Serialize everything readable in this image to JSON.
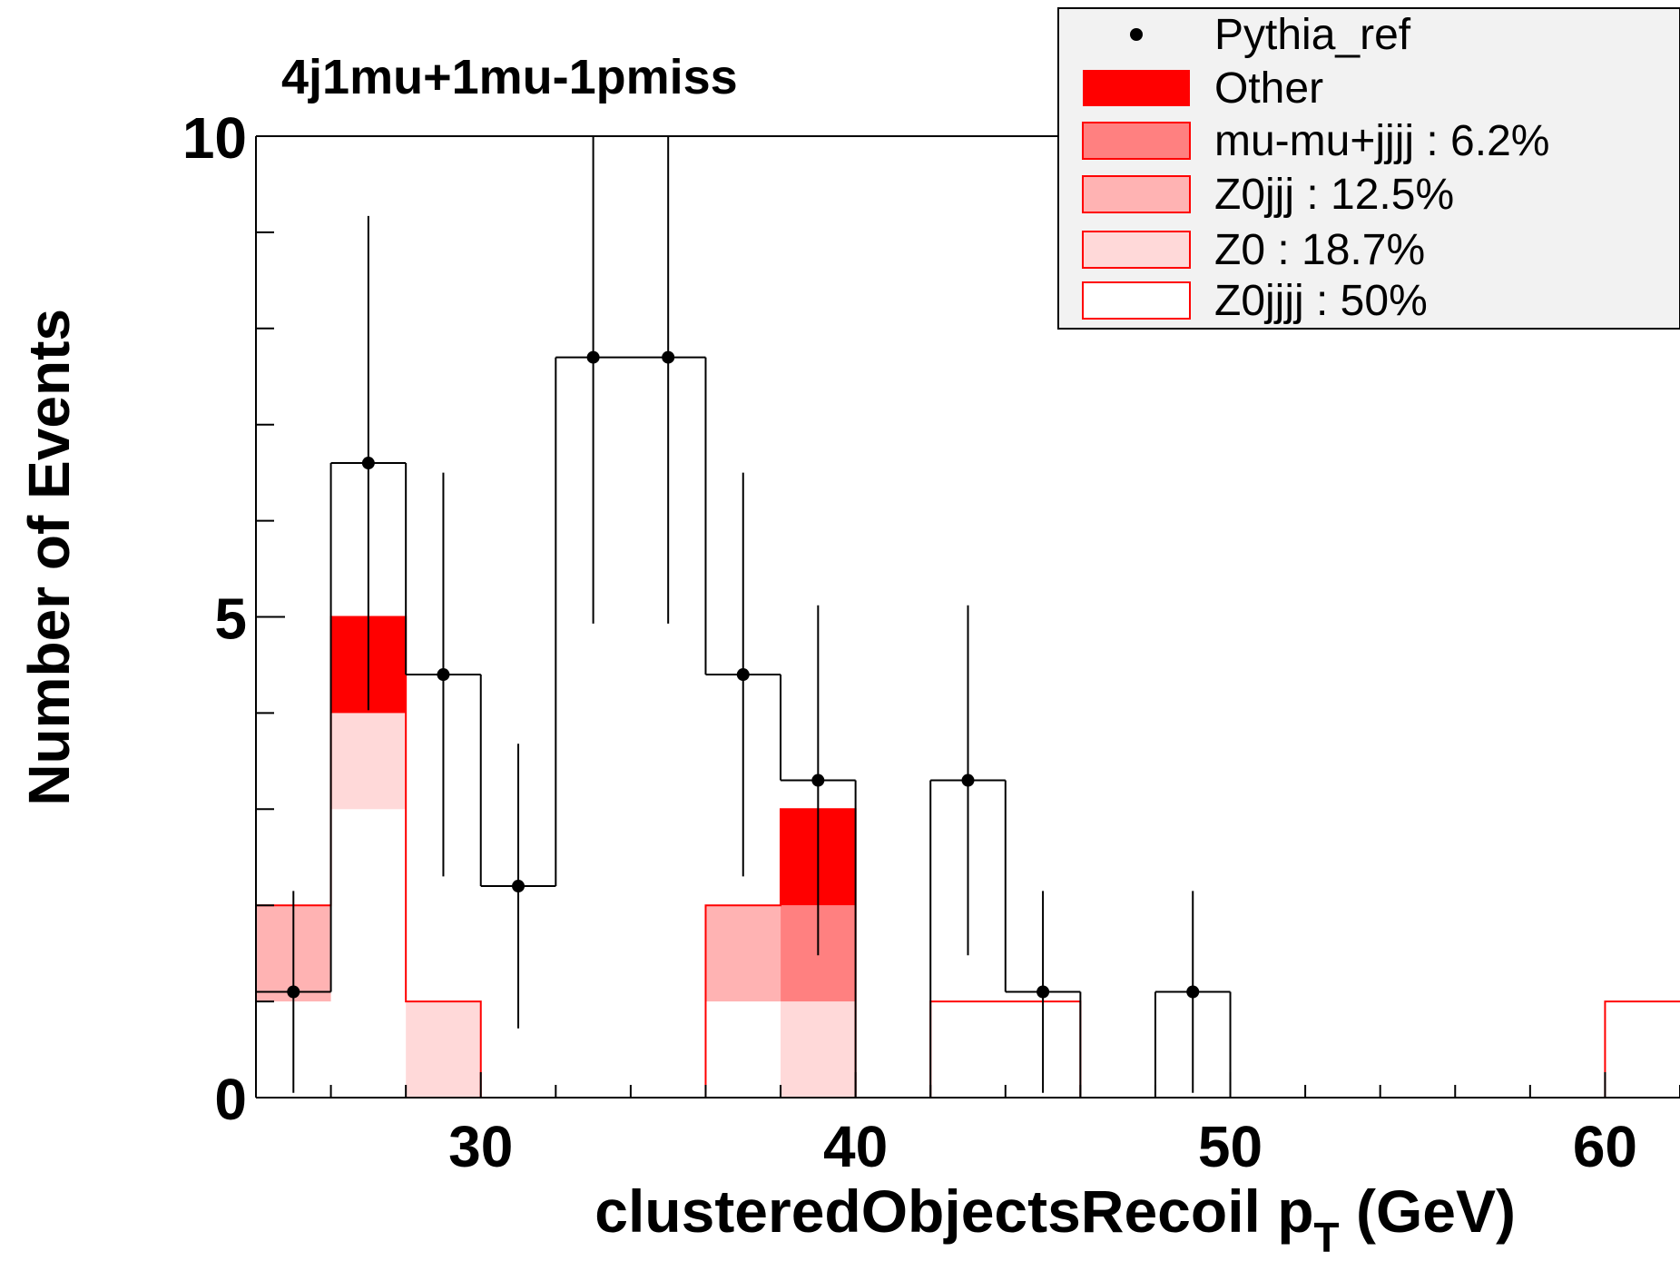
{
  "chart_data": {
    "type": "histogram",
    "title": "4j1mu+1mu-1pmiss",
    "xlabel": "clusteredObjectsRecoil p",
    "xlabel_sub": "T",
    "xlabel_unit": " (GeV)",
    "ylabel": "Number of Events",
    "xlim": [
      24,
      62
    ],
    "ylim": [
      0,
      10
    ],
    "x_tick_labels": [
      30,
      40,
      50,
      60
    ],
    "y_tick_labels": [
      0,
      5,
      10
    ],
    "bin_width": 2,
    "bins": [
      24,
      26,
      28,
      30,
      32,
      34,
      36,
      38,
      40,
      42,
      44,
      46,
      48,
      50,
      52,
      54,
      56,
      58,
      60
    ],
    "stack_series": [
      {
        "name": "Z0jjjj : 50%",
        "color": "#ffffff",
        "values": [
          1,
          3,
          0,
          0,
          0,
          0,
          1,
          0,
          0,
          1,
          1,
          0,
          0,
          0,
          0,
          0,
          0,
          0,
          1
        ]
      },
      {
        "name": "Z0 : 18.7%",
        "color": "#ffd9d9",
        "values": [
          0,
          1,
          1,
          0,
          0,
          0,
          0,
          1,
          0,
          0,
          0,
          0,
          0,
          0,
          0,
          0,
          0,
          0,
          0
        ]
      },
      {
        "name": "Z0jjj : 12.5%",
        "color": "#ffb3b3",
        "values": [
          1,
          0,
          0,
          0,
          0,
          0,
          1,
          0,
          0,
          0,
          0,
          0,
          0,
          0,
          0,
          0,
          0,
          0,
          0
        ]
      },
      {
        "name": "mu-mu+jjjj : 6.2%",
        "color": "#ff8080",
        "values": [
          0,
          0,
          0,
          0,
          0,
          0,
          0,
          1,
          0,
          0,
          0,
          0,
          0,
          0,
          0,
          0,
          0,
          0,
          0
        ]
      },
      {
        "name": "Other",
        "color": "#ff0000",
        "values": [
          0,
          1,
          0,
          0,
          0,
          0,
          0,
          1,
          0,
          0,
          0,
          0,
          0,
          0,
          0,
          0,
          0,
          0,
          0
        ]
      }
    ],
    "reference": {
      "name": "Pythia_ref",
      "values": [
        1.1,
        6.6,
        4.4,
        2.2,
        7.7,
        7.7,
        4.4,
        3.3,
        0,
        3.3,
        1.1,
        0,
        1.1,
        0,
        0,
        0,
        0,
        0,
        0
      ],
      "errors": [
        1.05,
        2.57,
        2.1,
        1.48,
        2.77,
        2.77,
        2.1,
        1.82,
        0,
        1.82,
        1.05,
        0,
        1.05,
        0,
        0,
        0,
        0,
        0,
        0
      ]
    },
    "legend": {
      "placement": "top-right",
      "entries": [
        {
          "label": "Pythia_ref",
          "style": "marker"
        },
        {
          "label": "Other",
          "style": "fill",
          "color": "#ff0000"
        },
        {
          "label": "mu-mu+jjjj : 6.2%",
          "style": "fill",
          "color": "#ff8080"
        },
        {
          "label": "Z0jjj : 12.5%",
          "style": "fill",
          "color": "#ffb3b3"
        },
        {
          "label": "Z0 : 18.7%",
          "style": "fill",
          "color": "#ffd9d9"
        },
        {
          "label": "Z0jjjj : 50%",
          "style": "fill",
          "color": "#ffffff"
        }
      ]
    },
    "grid": false
  }
}
